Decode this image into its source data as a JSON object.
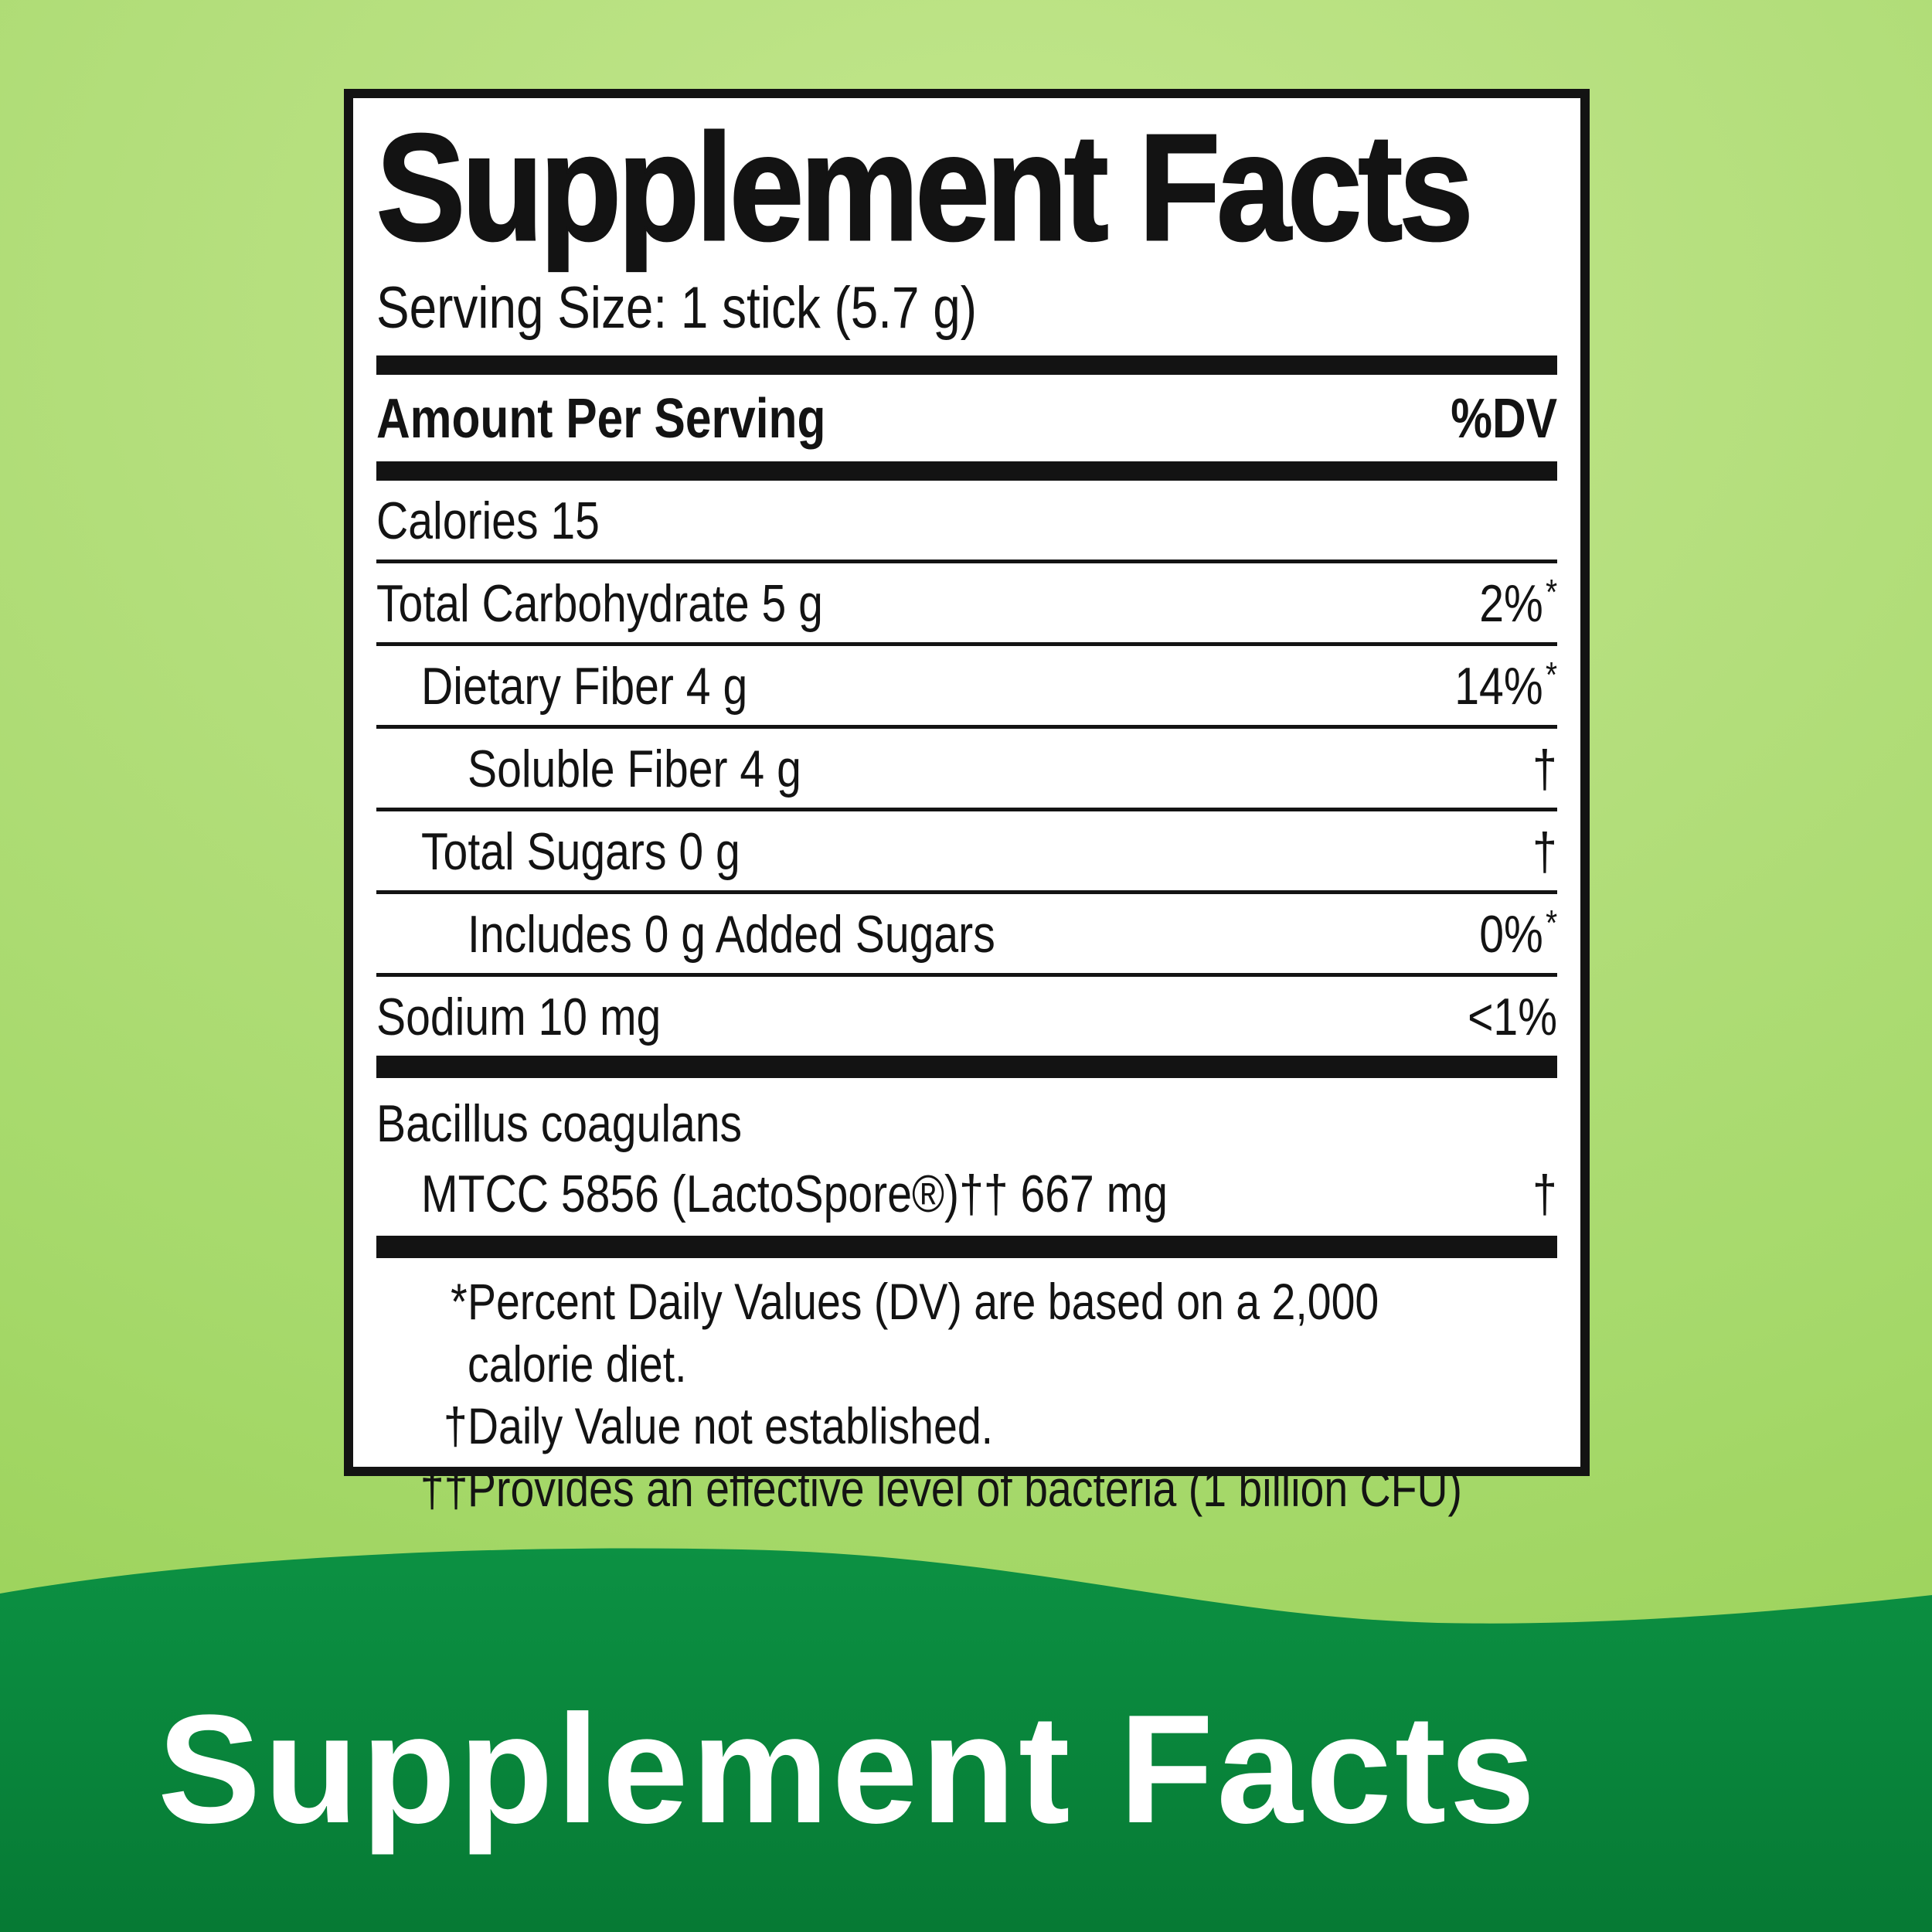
{
  "colors": {
    "background_light_green": "#a9da6e",
    "background_light_green_hi": "#c3e78d",
    "wave_green_top": "#0c9143",
    "wave_green_bottom": "#067a34",
    "panel_ink": "#131313",
    "banner_text": "#ffffff"
  },
  "banner": {
    "title": "Supplement Facts"
  },
  "label": {
    "title": "Supplement Facts",
    "serving_size": "Serving Size: 1 stick (5.7 g)",
    "header": {
      "amount": "Amount Per Serving",
      "dv": "%DV"
    },
    "rows": [
      {
        "text": "Calories 15",
        "indent": 0,
        "value": "",
        "mark": ""
      },
      {
        "text": "Total Carbohydrate 5 g",
        "indent": 0,
        "value": "2%",
        "mark": "*"
      },
      {
        "text": "Dietary Fiber 4 g",
        "indent": 1,
        "value": "14%",
        "mark": "*"
      },
      {
        "text": "Soluble Fiber 4 g",
        "indent": 2,
        "value": "†",
        "mark": ""
      },
      {
        "text": "Total Sugars 0 g",
        "indent": 1,
        "value": "†",
        "mark": ""
      },
      {
        "text": "Includes 0 g Added Sugars",
        "indent": 2,
        "value": "0%",
        "mark": "*"
      },
      {
        "text": "Sodium 10 mg",
        "indent": 0,
        "value": "<1%",
        "mark": ""
      }
    ],
    "probiotic": {
      "line1": "Bacillus coagulans",
      "line2": "MTCC 5856 (LactoSpore®)†† 667 mg",
      "value": "†"
    },
    "footnotes": [
      {
        "mark": "*",
        "lines": [
          "Percent Daily Values (DV) are based on a 2,000",
          "calorie diet."
        ]
      },
      {
        "mark": "†",
        "lines": [
          "Daily Value not established."
        ]
      },
      {
        "mark": "††",
        "lines": [
          "Provides an effective level of bacteria (1 billion CFU)"
        ]
      }
    ]
  }
}
